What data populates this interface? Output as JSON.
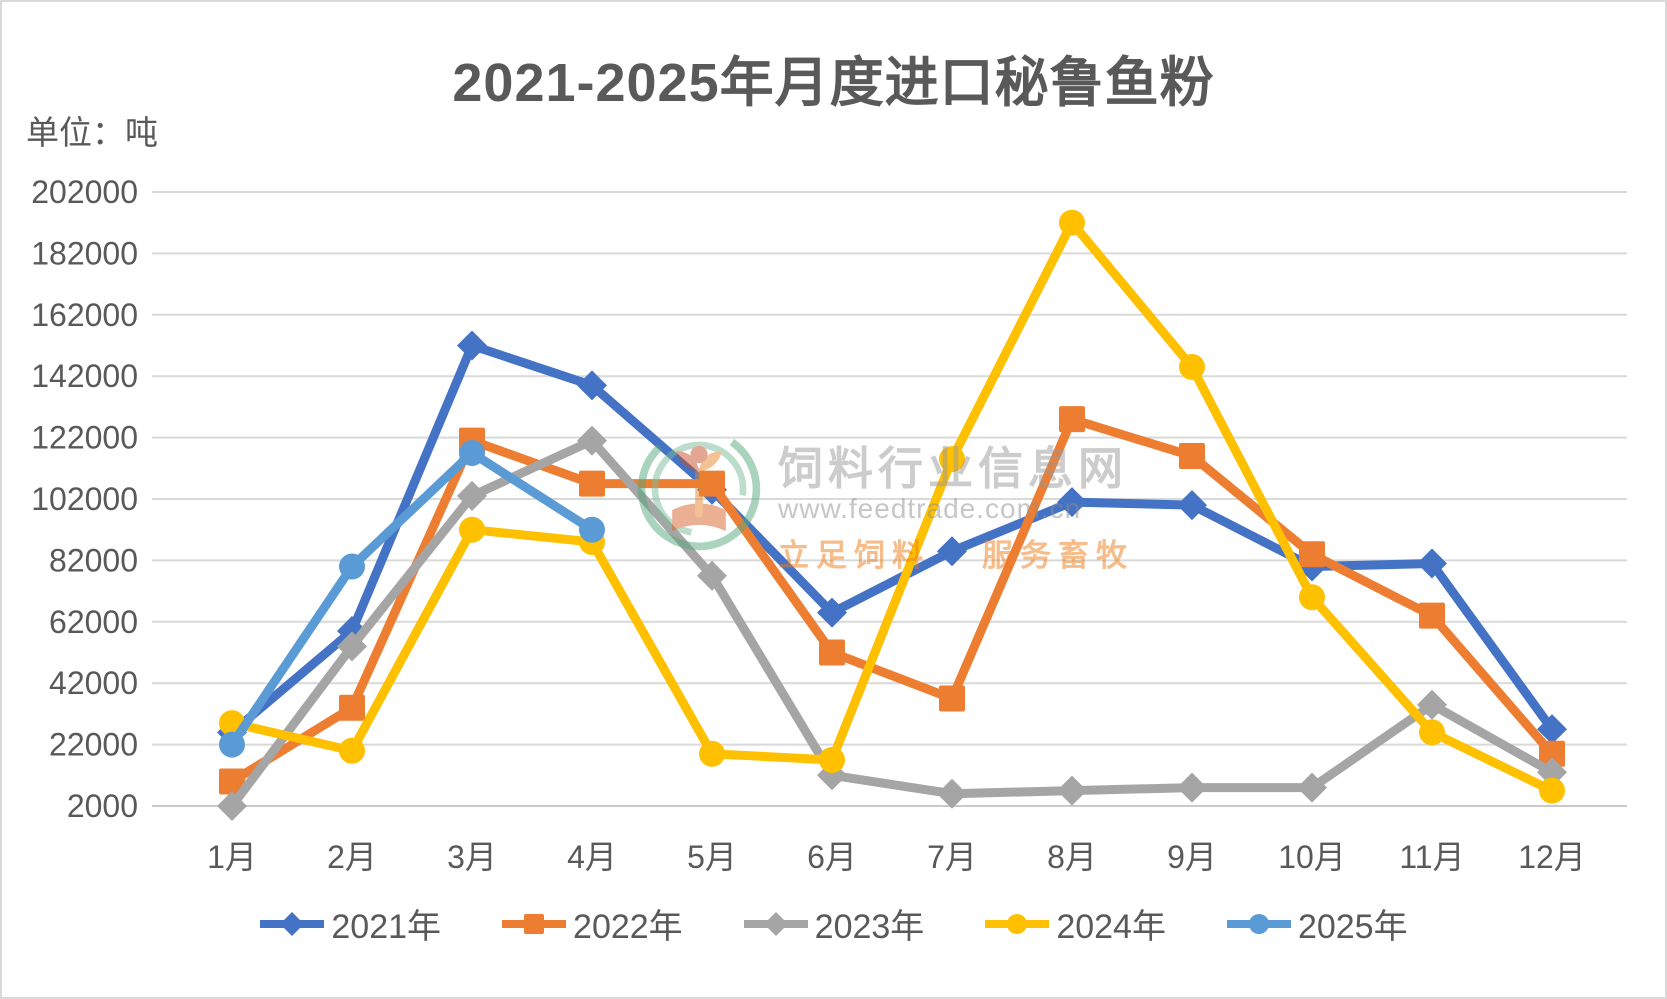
{
  "title": "2021-2025年月度进口秘鲁鱼粉",
  "unit_label": "单位：吨",
  "watermark": {
    "logo": "feedtrade-logo",
    "site_name": "饲料行业信息网",
    "site_url": "www.feedtrade.com.cn",
    "slogan_left": "立足饲料",
    "slogan_right": "服务畜牧"
  },
  "chart_data": {
    "type": "line",
    "title": "2021-2025年月度进口秘鲁鱼粉",
    "ylabel": "单位：吨",
    "xlabel": "",
    "grid": true,
    "legend_position": "bottom",
    "ylim": [
      2000,
      202000
    ],
    "ytick_step": 20000,
    "yticks": [
      202000,
      182000,
      162000,
      142000,
      122000,
      102000,
      82000,
      62000,
      42000,
      22000,
      2000
    ],
    "categories": [
      "1月",
      "2月",
      "3月",
      "4月",
      "5月",
      "6月",
      "7月",
      "8月",
      "9月",
      "10月",
      "11月",
      "12月"
    ],
    "series": [
      {
        "name": "2021年",
        "color": "#4472C4",
        "marker": "diamond",
        "values": [
          26000,
          59000,
          152000,
          139000,
          105000,
          65000,
          85000,
          101000,
          100000,
          80000,
          81000,
          27000
        ]
      },
      {
        "name": "2022年",
        "color": "#ED7D31",
        "marker": "square",
        "values": [
          10000,
          34000,
          121000,
          107000,
          107000,
          52000,
          37000,
          128000,
          116000,
          84000,
          64000,
          19000
        ]
      },
      {
        "name": "2023年",
        "color": "#A5A5A5",
        "marker": "diamond",
        "values": [
          2000,
          54000,
          103000,
          121000,
          77000,
          12000,
          6000,
          7000,
          8000,
          8000,
          35000,
          13000
        ]
      },
      {
        "name": "2024年",
        "color": "#FFC000",
        "marker": "circle",
        "values": [
          29000,
          20000,
          92000,
          88000,
          19000,
          17000,
          115000,
          192000,
          145000,
          70000,
          26000,
          7000
        ]
      },
      {
        "name": "2025年",
        "color": "#5B9BD5",
        "marker": "circle",
        "values": [
          22000,
          80000,
          117000,
          92000,
          null,
          null,
          null,
          null,
          null,
          null,
          null,
          null
        ]
      }
    ],
    "colors": {
      "gridline": "#D9D9D9",
      "axis_line": "#C9C9C9",
      "text": "#595959"
    }
  }
}
